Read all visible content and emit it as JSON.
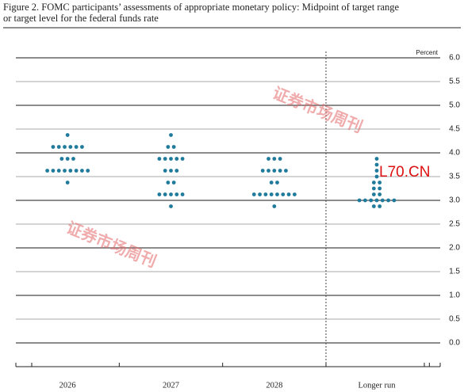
{
  "chart_data": {
    "type": "dot_plot",
    "title_lines": [
      "Figure 2. FOMC participants’ assessments of appropriate monetary policy: Midpoint of target range",
      "or target level for the federal funds rate"
    ],
    "y_label": "Percent",
    "categories": [
      "2026",
      "2027",
      "2028",
      "Longer run"
    ],
    "values": [
      [
        4.375,
        4.125,
        4.125,
        4.125,
        4.125,
        4.125,
        4.125,
        3.875,
        3.875,
        3.875,
        3.625,
        3.625,
        3.625,
        3.625,
        3.625,
        3.625,
        3.625,
        3.625,
        3.375
      ],
      [
        4.375,
        4.125,
        4.125,
        3.875,
        3.875,
        3.875,
        3.875,
        3.875,
        3.625,
        3.625,
        3.625,
        3.375,
        3.375,
        3.125,
        3.125,
        3.125,
        3.125,
        3.125,
        2.875
      ],
      [
        3.875,
        3.875,
        3.875,
        3.625,
        3.625,
        3.625,
        3.625,
        3.625,
        3.375,
        3.375,
        3.125,
        3.125,
        3.125,
        3.125,
        3.125,
        3.125,
        3.125,
        3.125,
        2.875
      ],
      [
        3.875,
        3.75,
        3.625,
        3.5,
        3.375,
        3.375,
        3.25,
        3.25,
        3.125,
        3.125,
        3.0,
        3.0,
        3.0,
        3.0,
        3.0,
        3.0,
        3.0,
        2.875,
        2.875
      ]
    ],
    "color": "#1f7a9c",
    "ylim": [
      -0.5,
      6.0
    ],
    "yticks": [
      {
        "value": 0,
        "label": "0.0"
      },
      0.5,
      {
        "value": 1,
        "label": "1.0"
      },
      1.5,
      {
        "value": 2,
        "label": "2.0"
      },
      2.5,
      {
        "value": 3,
        "label": "3.0"
      },
      3.5,
      {
        "value": 4,
        "label": "4.0"
      },
      4.5,
      {
        "value": 5,
        "label": "5.0"
      },
      5.5,
      {
        "value": 6,
        "label": "6.0"
      }
    ],
    "grid": true,
    "watermarks": [
      "证券市场周刊",
      "证券市场周刊",
      "L70.CN"
    ]
  }
}
